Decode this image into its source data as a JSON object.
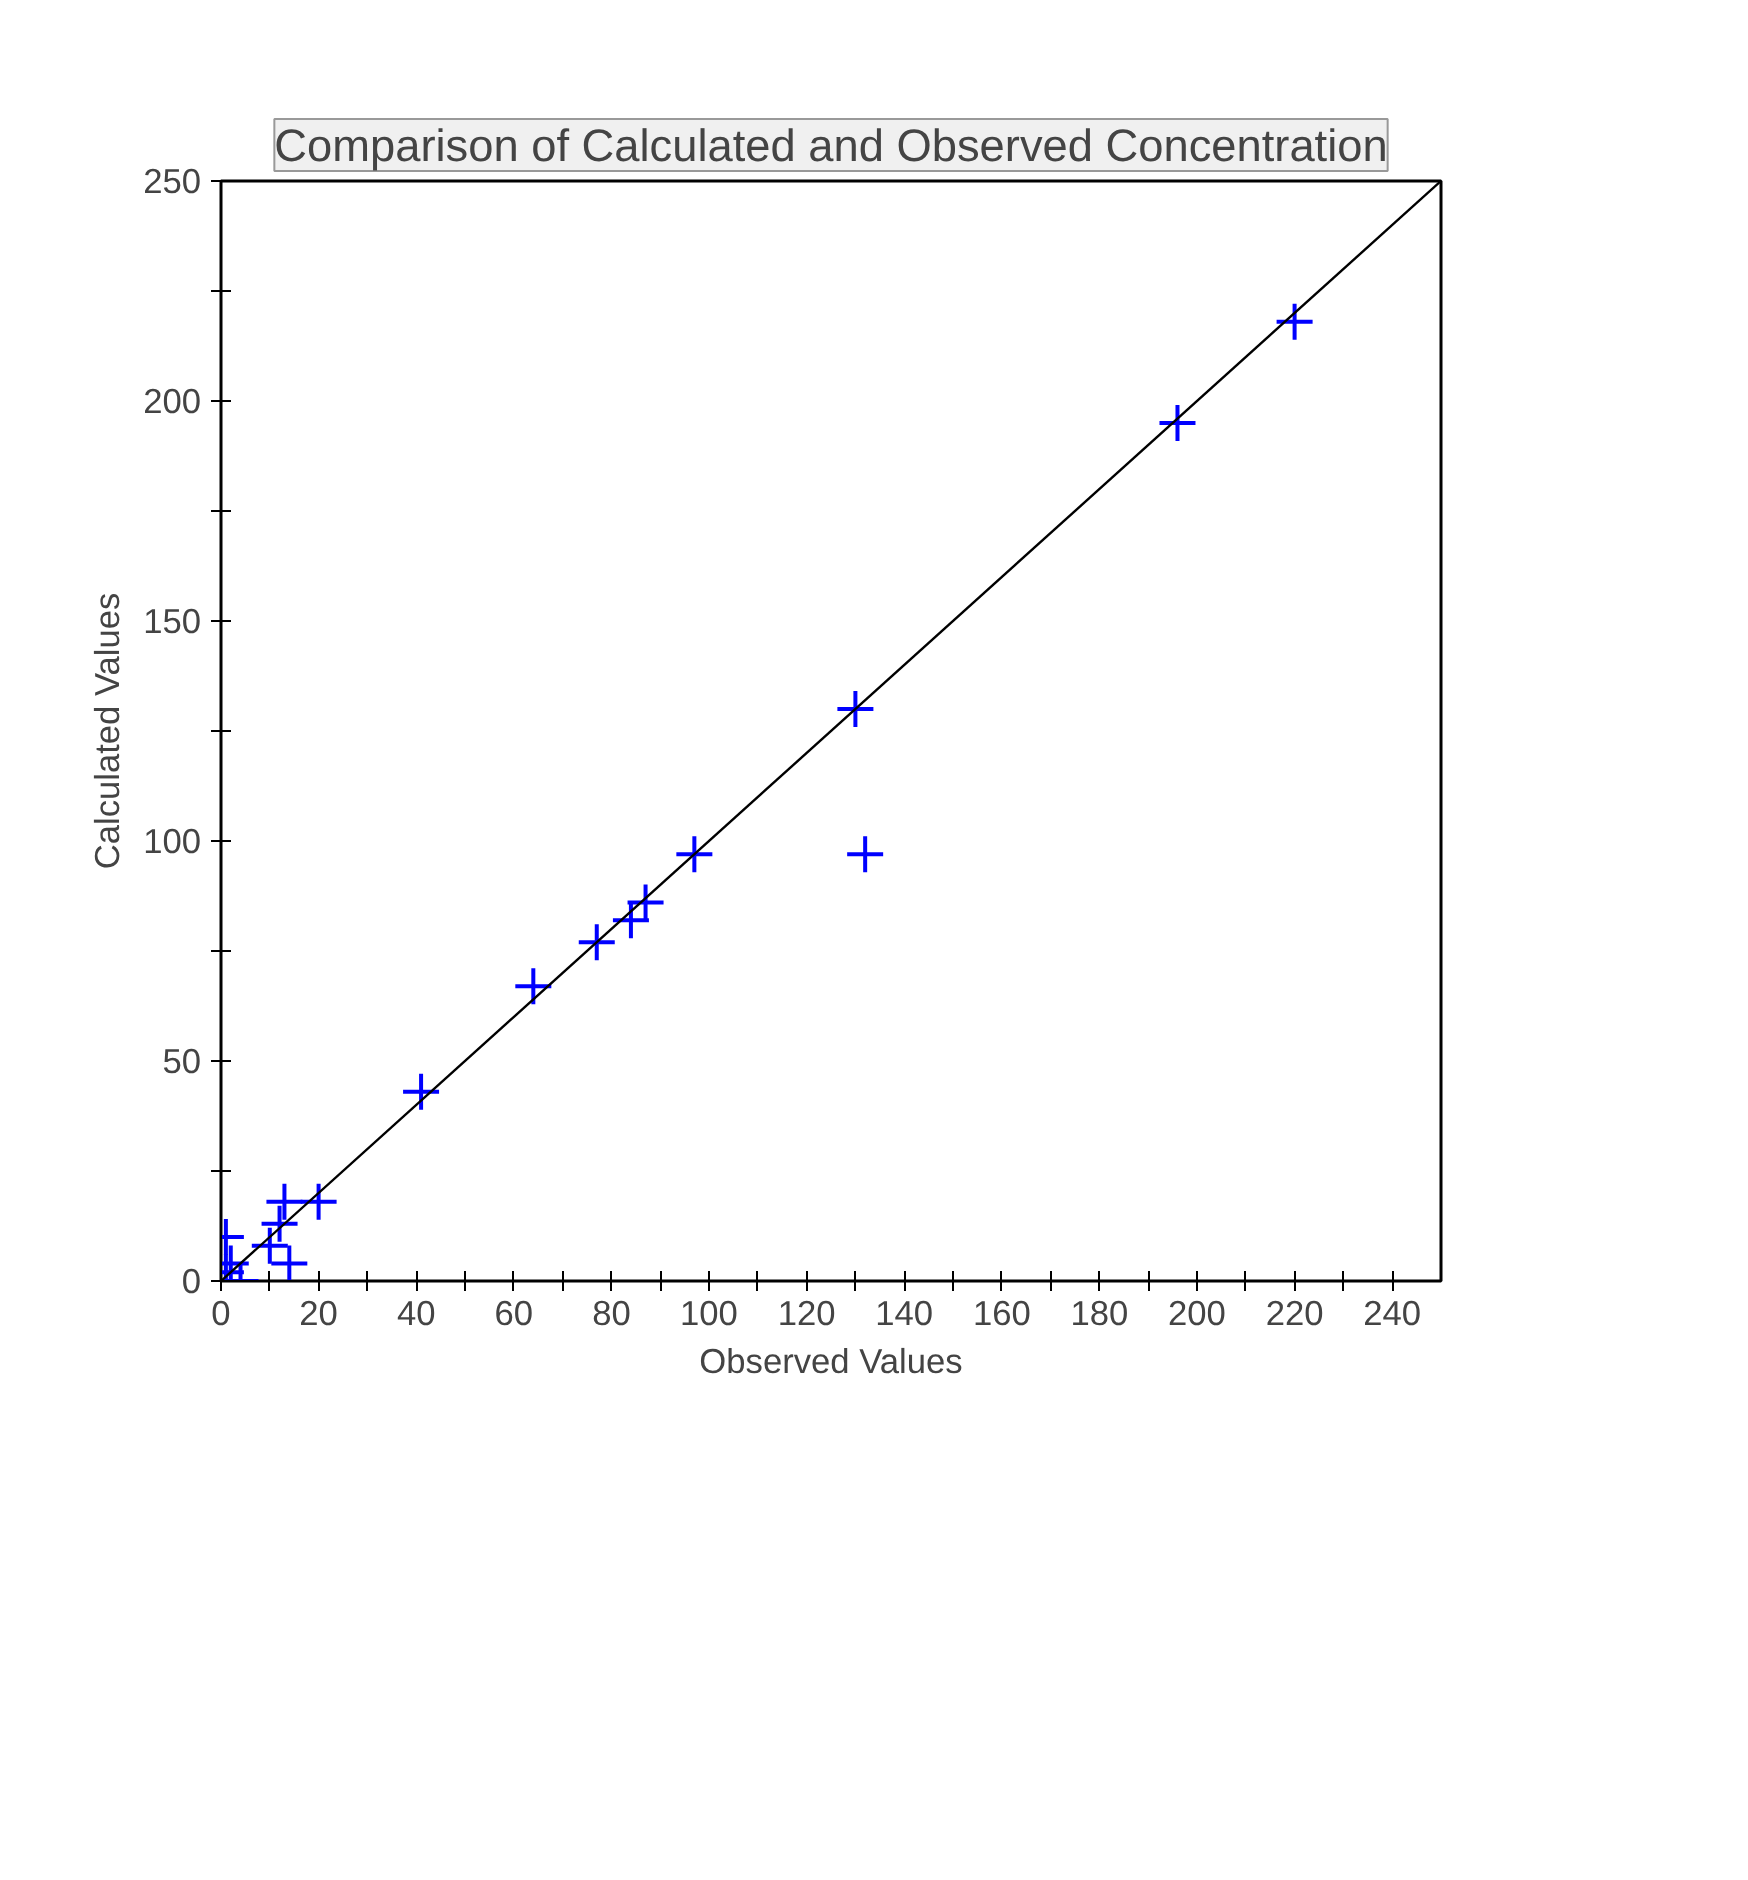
{
  "chart_data": {
    "type": "scatter",
    "title": "Comparison of Calculated and Observed Concentration",
    "xlabel": "Observed Values",
    "ylabel": "Calculated Values",
    "xlim": [
      0,
      250
    ],
    "ylim": [
      0,
      250
    ],
    "xticks": [
      0,
      {
        "value": 10,
        "label": null
      },
      20,
      {
        "value": 30,
        "label": null
      },
      40,
      {
        "value": 50,
        "label": null
      },
      60,
      {
        "value": 70,
        "label": null
      },
      80,
      {
        "value": 90,
        "label": null
      },
      100,
      {
        "value": 110,
        "label": null
      },
      120,
      {
        "value": 130,
        "label": null
      },
      140,
      {
        "value": 150,
        "label": null
      },
      160,
      {
        "value": 170,
        "label": null
      },
      180,
      {
        "value": 190,
        "label": null
      },
      200,
      {
        "value": 210,
        "label": null
      },
      220,
      {
        "value": 230,
        "label": null
      },
      240
    ],
    "yticks": [
      0,
      {
        "value": 25,
        "label": null
      },
      50,
      {
        "value": 75,
        "label": null
      },
      100,
      {
        "value": 125,
        "label": null
      },
      150,
      {
        "value": 175,
        "label": null
      },
      200,
      {
        "value": 225,
        "label": null
      },
      250
    ],
    "grid": false,
    "marker": "cross",
    "series": [
      {
        "color": "#0000ff",
        "x": [
          220,
          196,
          130,
          132,
          97,
          87,
          84,
          77,
          64,
          41,
          20,
          13,
          12,
          14,
          10,
          1,
          1,
          4,
          2
        ],
        "values": [
          218,
          195,
          130,
          97,
          97,
          86,
          82,
          77,
          67,
          43,
          18,
          18,
          13,
          4,
          8,
          10,
          2,
          0,
          4
        ]
      },
      {
        "type": "line",
        "color": "#000000",
        "line_style": "solid",
        "x": [
          0,
          250
        ],
        "values": [
          0,
          250
        ]
      }
    ]
  }
}
